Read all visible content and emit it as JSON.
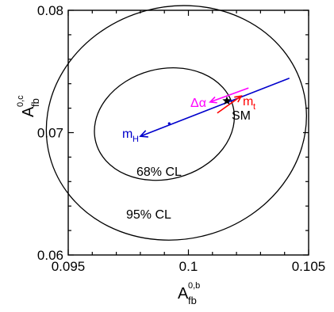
{
  "chart_data": {
    "type": "scatter",
    "xlabel": {
      "main": "A",
      "sup": "0,b",
      "sub": "fb"
    },
    "ylabel": {
      "main": "A",
      "sup": "0,c",
      "sub": "fb"
    },
    "xlim": [
      0.095,
      0.105
    ],
    "ylim": [
      0.06,
      0.08
    ],
    "xticks": [
      0.095,
      0.1,
      0.105
    ],
    "xtick_labels": [
      "0.095",
      "0.1",
      "0.105"
    ],
    "yticks": [
      0.06,
      0.07,
      0.08
    ],
    "ytick_labels": [
      "0.06",
      "0.07",
      "0.08"
    ],
    "grid": false,
    "colors": {
      "axes": "#000000",
      "mH": "#0000cc",
      "mt": "#ff0000",
      "alpha": "#ff00ff"
    },
    "contours": [
      {
        "label": "68% CL",
        "center": [
          0.099,
          0.0707
        ],
        "semi_x": 0.00295,
        "semi_y": 0.0045,
        "tilt_deg": -15
      },
      {
        "label": "95% CL",
        "center": [
          0.0995,
          0.0708
        ],
        "semi_x": 0.00545,
        "semi_y": 0.0095,
        "tilt_deg": -15
      }
    ],
    "best_fit": [
      0.0992,
      0.07075
    ],
    "sm_point": {
      "label": "SM",
      "x": 0.1016,
      "y": 0.0726
    },
    "mH_line": {
      "label": "m_H",
      "from": [
        0.1042,
        0.07445
      ],
      "to": [
        0.098,
        0.0697
      ],
      "arrow_at": [
        0.098,
        0.0697
      ],
      "dot": [
        0.0992,
        0.07075
      ]
    },
    "mt_arrow": {
      "label": "m_t",
      "from": [
        0.1012,
        0.0716
      ],
      "to": [
        0.1022,
        0.073
      ]
    },
    "alpha_arrow": {
      "label": "Δα",
      "from": [
        0.1025,
        0.07365
      ],
      "to": [
        0.1009,
        0.0725
      ]
    },
    "annotations": {
      "sm": "SM",
      "cl68": "68% CL",
      "cl95": "95% CL",
      "mH_main": "m",
      "mH_sub": "H",
      "mt_main": "m",
      "mt_sub": "t",
      "alpha": "Δα"
    }
  }
}
